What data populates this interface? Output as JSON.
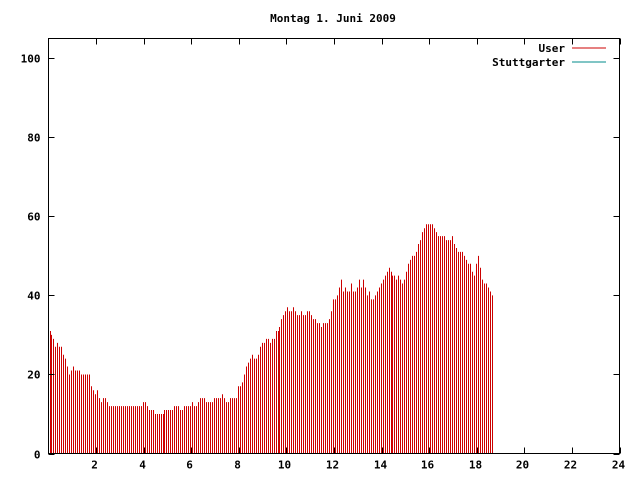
{
  "chart_data": {
    "type": "bar",
    "title": "Montag 1. Juni 2009",
    "xlabel": "",
    "ylabel": "",
    "xlim": [
      0,
      24
    ],
    "ylim": [
      0,
      105
    ],
    "x_ticks": [
      2,
      4,
      6,
      8,
      10,
      12,
      14,
      16,
      18,
      20,
      22,
      24
    ],
    "y_ticks": [
      0,
      20,
      40,
      60,
      80,
      100
    ],
    "grid": false,
    "legend_position": "top-right",
    "colors": {
      "User": "#cc0000",
      "Stuttgarter": "#008b8b"
    },
    "series": [
      {
        "name": "User",
        "interval_minutes": 5,
        "values": [
          31,
          30,
          29,
          27,
          28,
          27,
          27,
          25,
          24,
          22,
          20,
          21,
          22,
          21,
          21,
          21,
          20,
          20,
          20,
          20,
          20,
          17,
          16,
          15,
          16,
          14,
          13,
          14,
          14,
          13,
          12,
          12,
          12,
          12,
          12,
          12,
          12,
          12,
          12,
          12,
          12,
          12,
          12,
          12,
          12,
          12,
          12,
          13,
          13,
          12,
          11,
          11,
          11,
          10,
          10,
          10,
          10,
          10,
          11,
          11,
          11,
          11,
          11,
          12,
          12,
          12,
          11,
          11,
          12,
          12,
          12,
          12,
          13,
          12,
          12,
          13,
          14,
          14,
          14,
          13,
          13,
          13,
          13,
          14,
          14,
          14,
          14,
          15,
          14,
          13,
          13,
          14,
          14,
          14,
          14,
          17,
          17,
          18,
          20,
          22,
          23,
          24,
          25,
          24,
          24,
          25,
          27,
          28,
          28,
          29,
          29,
          28,
          29,
          29,
          31,
          31,
          32,
          34,
          35,
          36,
          37,
          36,
          36,
          37,
          36,
          35,
          35,
          36,
          35,
          35,
          36,
          36,
          35,
          34,
          34,
          33,
          33,
          32,
          33,
          33,
          33,
          34,
          36,
          39,
          39,
          40,
          42,
          44,
          41,
          42,
          41,
          41,
          43,
          41,
          41,
          42,
          44,
          42,
          44,
          42,
          40,
          41,
          39,
          39,
          40,
          41,
          42,
          43,
          44,
          45,
          46,
          47,
          46,
          45,
          45,
          44,
          45,
          44,
          43,
          44,
          46,
          48,
          49,
          50,
          50,
          51,
          53,
          54,
          56,
          57,
          58,
          58,
          58,
          58,
          57,
          56,
          55,
          55,
          55,
          55,
          54,
          54,
          54,
          55,
          53,
          52,
          51,
          51,
          51,
          50,
          49,
          48,
          48,
          46,
          45,
          48,
          50,
          47,
          44,
          43,
          43,
          42,
          41,
          40
        ]
      },
      {
        "name": "Stuttgarter",
        "interval_minutes": 5,
        "values": []
      }
    ]
  }
}
